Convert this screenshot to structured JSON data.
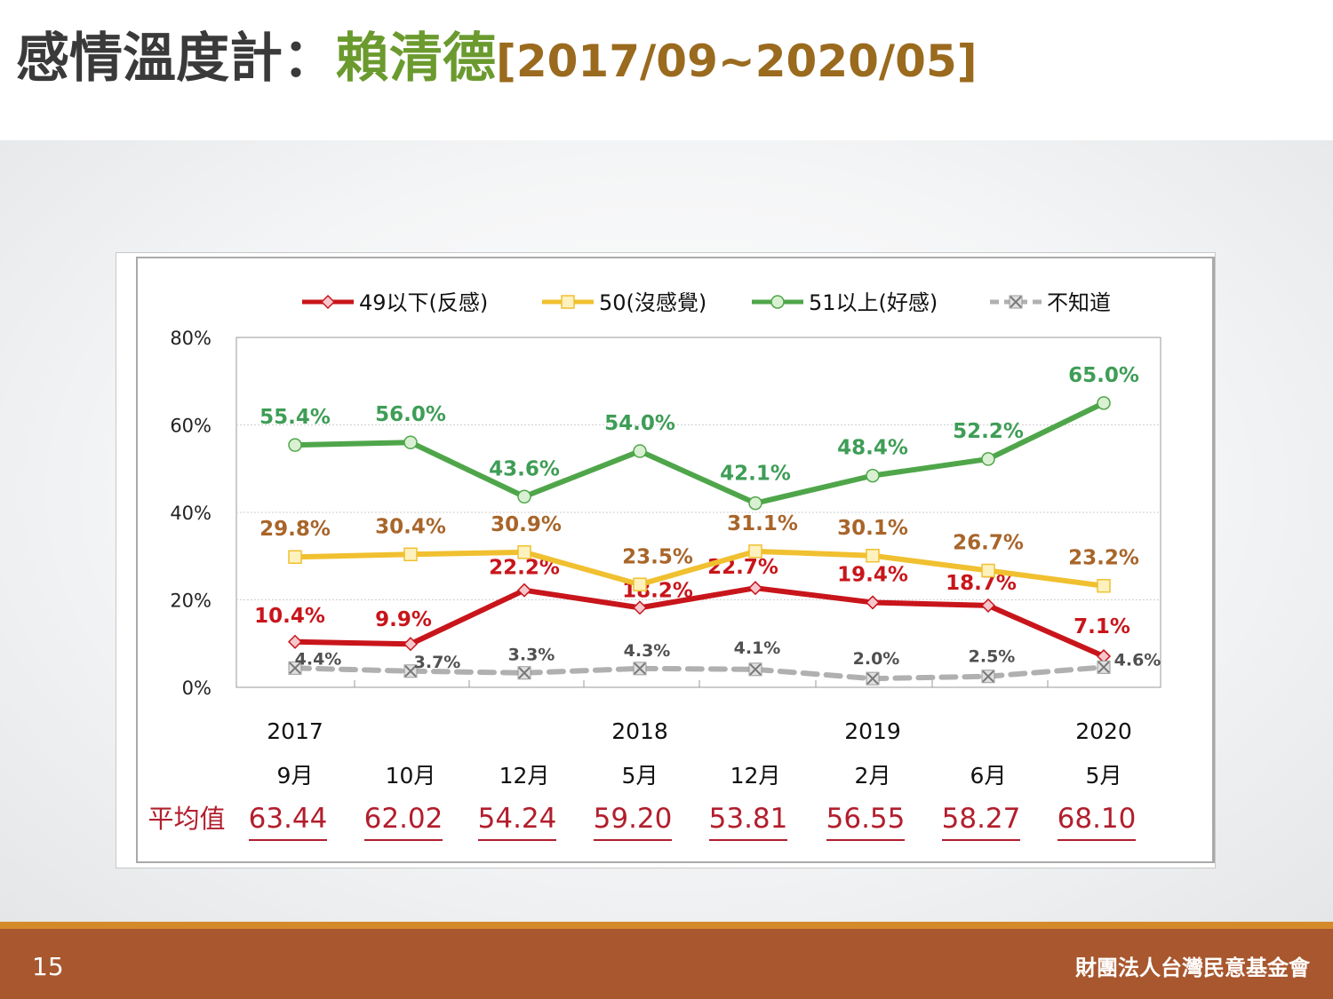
{
  "slide": {
    "title_main": "感情溫度計：",
    "title_name": "賴清德",
    "title_range": "[2017/09~2020/05]",
    "page_number": "15",
    "organization": "財團法人台灣民意基金會"
  },
  "chart_data": {
    "type": "line",
    "categories": [
      "9月",
      "10月",
      "12月",
      "5月",
      "12月",
      "2月",
      "6月",
      "5月"
    ],
    "years": [
      "2017",
      "",
      "",
      "2018",
      "",
      "2019",
      "",
      "2020"
    ],
    "ylim": [
      0,
      80
    ],
    "yticks": [
      "0%",
      "20%",
      "40%",
      "60%",
      "80%"
    ],
    "grid": true,
    "legend_position": "top",
    "series": [
      {
        "name": "49以下(反感)",
        "color": "#c8151b",
        "marker": "diamond",
        "dashed": false,
        "values": [
          10.4,
          9.9,
          22.2,
          18.2,
          22.7,
          19.4,
          18.7,
          7.1
        ],
        "labels": [
          "10.4%",
          "9.9%",
          "22.2%",
          "18.2%",
          "22.7%",
          "19.4%",
          "18.7%",
          "7.1%"
        ],
        "label_color": "#c8151b"
      },
      {
        "name": "50(沒感覺)",
        "color": "#f0c030",
        "marker": "square",
        "dashed": false,
        "values": [
          29.8,
          30.4,
          30.9,
          23.5,
          31.1,
          30.1,
          26.7,
          23.2
        ],
        "labels": [
          "29.8%",
          "30.4%",
          "30.9%",
          "23.5%",
          "31.1%",
          "30.1%",
          "26.7%",
          "23.2%"
        ],
        "label_color": "#a8652a"
      },
      {
        "name": "51以上(好感)",
        "color": "#4fa64a",
        "marker": "circle",
        "dashed": false,
        "values": [
          55.4,
          56.0,
          43.6,
          54.0,
          42.1,
          48.4,
          52.2,
          65.0
        ],
        "labels": [
          "55.4%",
          "56.0%",
          "43.6%",
          "54.0%",
          "42.1%",
          "48.4%",
          "52.2%",
          "65.0%"
        ],
        "label_color": "#3e9d56"
      },
      {
        "name": "不知道",
        "color": "#b0b0b0",
        "marker": "x",
        "dashed": true,
        "values": [
          4.4,
          3.7,
          3.3,
          4.3,
          4.1,
          2.0,
          2.5,
          4.6
        ],
        "labels": [
          "4.4%",
          "3.7%",
          "3.3%",
          "4.3%",
          "4.1%",
          "2.0%",
          "2.5%",
          "4.6%"
        ],
        "label_color": "#505050"
      }
    ],
    "averages_label": "平均值",
    "averages": [
      "63.44",
      "62.02",
      "54.24",
      "59.20",
      "53.81",
      "56.55",
      "58.27",
      "68.10"
    ]
  }
}
